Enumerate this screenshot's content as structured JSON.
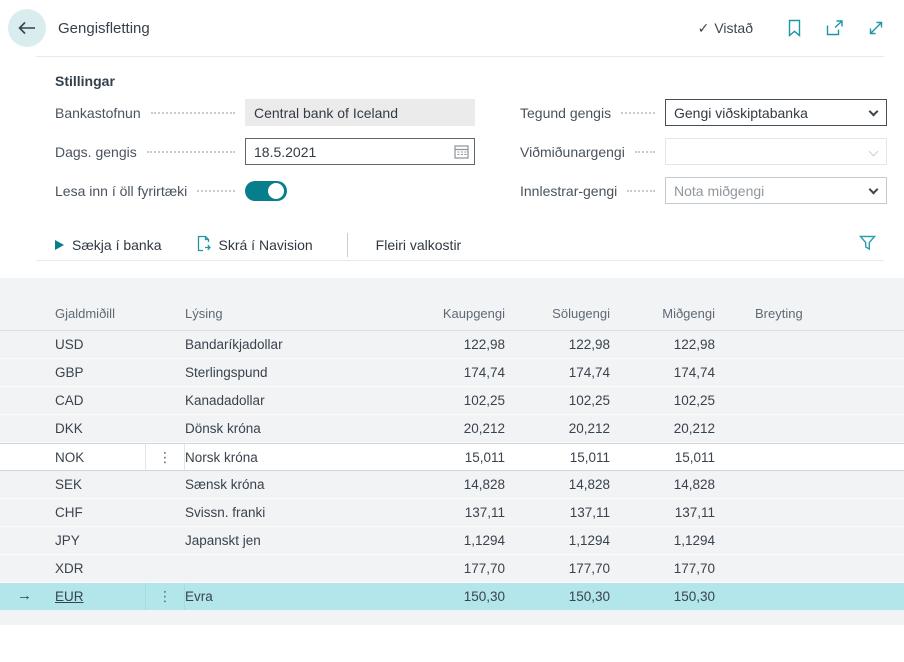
{
  "header": {
    "title": "Gengisfletting",
    "saved_label": "Vistað",
    "saved_check": "✓"
  },
  "settings": {
    "title": "Stillingar",
    "left": [
      {
        "label": "Bankastofnun",
        "value": "Central bank of Iceland"
      },
      {
        "label": "Dags. gengis",
        "value": "18.5.2021"
      },
      {
        "label": "Lesa inn í öll fyrirtæki",
        "value": "on"
      }
    ],
    "right": [
      {
        "label": "Tegund gengis",
        "value": "Gengi viðskiptabanka"
      },
      {
        "label": "Viðmiðunargengi",
        "value": ""
      },
      {
        "label": "Innlestrar-gengi",
        "value": "Nota miðgengi"
      }
    ]
  },
  "actions": {
    "fetch_label": "Sækja í banka",
    "register_label": "Skrá í Navision",
    "more_label": "Fleiri valkostir"
  },
  "table": {
    "columns": [
      "Gjaldmiðill",
      "Lýsing",
      "Kaupgengi",
      "Sölugengi",
      "Miðgengi",
      "Breyting"
    ],
    "rows": [
      {
        "currency": "USD",
        "description": "Bandaríkjadollar",
        "buy": "122,98",
        "sell": "122,98",
        "mid": "122,98",
        "change": ""
      },
      {
        "currency": "GBP",
        "description": "Sterlingspund",
        "buy": "174,74",
        "sell": "174,74",
        "mid": "174,74",
        "change": ""
      },
      {
        "currency": "CAD",
        "description": "Kanadadollar",
        "buy": "102,25",
        "sell": "102,25",
        "mid": "102,25",
        "change": ""
      },
      {
        "currency": "DKK",
        "description": "Dönsk króna",
        "buy": "20,212",
        "sell": "20,212",
        "mid": "20,212",
        "change": ""
      },
      {
        "currency": "NOK",
        "description": "Norsk króna",
        "buy": "15,011",
        "sell": "15,011",
        "mid": "15,011",
        "change": "",
        "hover": true,
        "menu": true
      },
      {
        "currency": "SEK",
        "description": "Sænsk króna",
        "buy": "14,828",
        "sell": "14,828",
        "mid": "14,828",
        "change": ""
      },
      {
        "currency": "CHF",
        "description": "Svissn. franki",
        "buy": "137,11",
        "sell": "137,11",
        "mid": "137,11",
        "change": ""
      },
      {
        "currency": "JPY",
        "description": "Japanskt jen",
        "buy": "1,1294",
        "sell": "1,1294",
        "mid": "1,1294",
        "change": ""
      },
      {
        "currency": "XDR",
        "description": "",
        "buy": "177,70",
        "sell": "177,70",
        "mid": "177,70",
        "change": ""
      },
      {
        "currency": "EUR",
        "description": "Evra",
        "buy": "150,30",
        "sell": "150,30",
        "mid": "150,30",
        "change": "",
        "selected": true,
        "menu": true
      }
    ]
  },
  "glyphs": {
    "row_menu": "⋮",
    "selected_arrow": "→"
  },
  "colors": {
    "accent": "#077e8c",
    "icon_teal": "#1d97a5",
    "selected_row": "#b2e6ea"
  }
}
